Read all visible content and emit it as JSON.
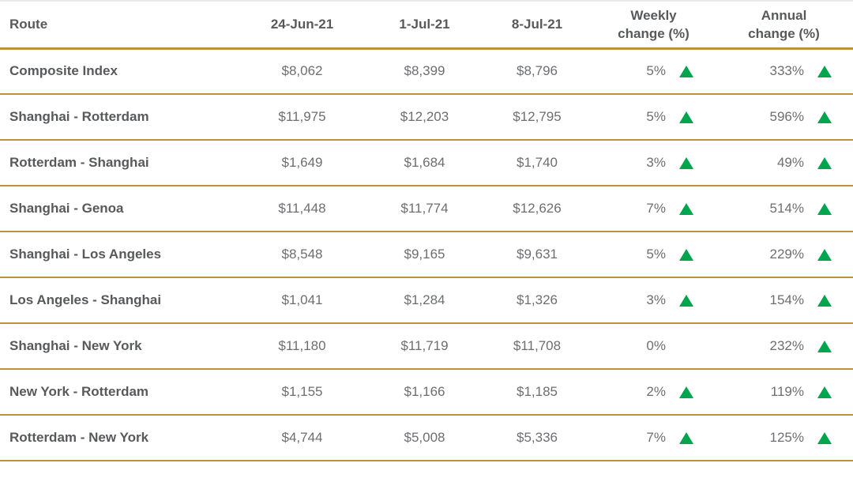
{
  "colors": {
    "divider_gold": "#BC9339",
    "divider_top": "#E8EAEB",
    "header_text": "#58595B",
    "value_text": "#6D6E71",
    "up_green": "#00A54E",
    "background": "#FFFFFF"
  },
  "icons": {
    "up_triangle": "triangle-up-icon"
  },
  "table": {
    "header": {
      "route": "Route",
      "date1": "24-Jun-21",
      "date2": "1-Jul-21",
      "date3": "8-Jul-21",
      "weekly_line1": "Weekly",
      "weekly_line2": "change (%)",
      "annual_line1": "Annual",
      "annual_line2": "change (%)"
    },
    "rows": [
      {
        "route": "Composite Index",
        "d1": "$8,062",
        "d2": "$8,399",
        "d3": "$8,796",
        "weekly": "5%",
        "weekly_up": true,
        "annual": "333%",
        "annual_up": true
      },
      {
        "route": "Shanghai - Rotterdam",
        "d1": "$11,975",
        "d2": "$12,203",
        "d3": "$12,795",
        "weekly": "5%",
        "weekly_up": true,
        "annual": "596%",
        "annual_up": true
      },
      {
        "route": "Rotterdam - Shanghai",
        "d1": "$1,649",
        "d2": "$1,684",
        "d3": "$1,740",
        "weekly": "3%",
        "weekly_up": true,
        "annual": "49%",
        "annual_up": true
      },
      {
        "route": "Shanghai - Genoa",
        "d1": "$11,448",
        "d2": "$11,774",
        "d3": "$12,626",
        "weekly": "7%",
        "weekly_up": true,
        "annual": "514%",
        "annual_up": true
      },
      {
        "route": "Shanghai - Los Angeles",
        "d1": "$8,548",
        "d2": "$9,165",
        "d3": "$9,631",
        "weekly": "5%",
        "weekly_up": true,
        "annual": "229%",
        "annual_up": true
      },
      {
        "route": "Los Angeles - Shanghai",
        "d1": "$1,041",
        "d2": "$1,284",
        "d3": "$1,326",
        "weekly": "3%",
        "weekly_up": true,
        "annual": "154%",
        "annual_up": true
      },
      {
        "route": "Shanghai - New York",
        "d1": "$11,180",
        "d2": "$11,719",
        "d3": "$11,708",
        "weekly": "0%",
        "weekly_up": false,
        "annual": "232%",
        "annual_up": true
      },
      {
        "route": "New York - Rotterdam",
        "d1": "$1,155",
        "d2": "$1,166",
        "d3": "$1,185",
        "weekly": "2%",
        "weekly_up": true,
        "annual": "119%",
        "annual_up": true
      },
      {
        "route": "Rotterdam - New York",
        "d1": "$4,744",
        "d2": "$5,008",
        "d3": "$5,336",
        "weekly": "7%",
        "weekly_up": true,
        "annual": "125%",
        "annual_up": true
      }
    ]
  },
  "chart_data": {
    "type": "table",
    "columns": [
      "Route",
      "24-Jun-21",
      "1-Jul-21",
      "8-Jul-21",
      "Weekly change (%)",
      "Annual change (%)"
    ],
    "rows": [
      [
        "Composite Index",
        8062,
        8399,
        8796,
        5,
        333
      ],
      [
        "Shanghai - Rotterdam",
        11975,
        12203,
        12795,
        5,
        596
      ],
      [
        "Rotterdam - Shanghai",
        1649,
        1684,
        1740,
        3,
        49
      ],
      [
        "Shanghai - Genoa",
        11448,
        11774,
        12626,
        7,
        514
      ],
      [
        "Shanghai - Los Angeles",
        8548,
        9165,
        9631,
        5,
        229
      ],
      [
        "Los Angeles - Shanghai",
        1041,
        1284,
        1326,
        3,
        154
      ],
      [
        "Shanghai - New York",
        11180,
        11719,
        11708,
        0,
        232
      ],
      [
        "New York - Rotterdam",
        1155,
        1166,
        1185,
        2,
        119
      ],
      [
        "Rotterdam - New York",
        4744,
        5008,
        5336,
        7,
        125
      ]
    ],
    "notes": "Dollar values shown with $ and thousands separators; weekly/annual change cells show green up-triangle when positive (no triangle on 0%)."
  }
}
